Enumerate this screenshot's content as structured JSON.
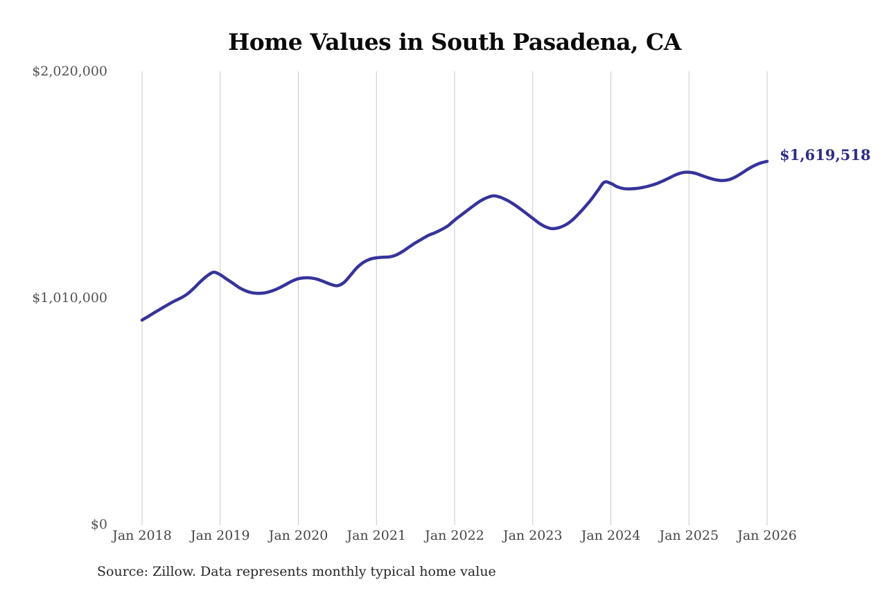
{
  "title": "Home Values in South Pasadena, CA",
  "source_note": "Source: Zillow. Data represents monthly typical home value",
  "colors": {
    "line": "#37339a",
    "end_label": "#2e2c87",
    "gridline": "#c9c9c9",
    "x_tick_label": "#454545",
    "y_tick_label": "#515151",
    "title": "#0a0a0a",
    "source": "#262626",
    "background": "#ffffff"
  },
  "chart_data": {
    "type": "line",
    "title": "Home Values in South Pasadena, CA",
    "xlabel": "",
    "ylabel": "",
    "ylim": [
      0,
      2020000
    ],
    "grid": "vertical-only",
    "legend": "none",
    "x_interval": "monthly",
    "x_start": "Jan 2018",
    "x_end": "Jan 2026",
    "months_per_tick": 12,
    "x_tick_labels": [
      "Jan 2018",
      "Jan 2019",
      "Jan 2020",
      "Jan 2021",
      "Jan 2022",
      "Jan 2023",
      "Jan 2024",
      "Jan 2025",
      "Jan 2026"
    ],
    "y_tick_labels": [
      "$0",
      "$1,010,000",
      "$2,020,000"
    ],
    "y_tick_values": [
      0,
      1010000,
      2020000
    ],
    "series": [
      {
        "name": "Monthly typical home value",
        "color": "#37339a",
        "values": [
          913000,
          930000,
          948000,
          965000,
          982000,
          998000,
          1012000,
          1030000,
          1056000,
          1085000,
          1110000,
          1126000,
          1115000,
          1095000,
          1076000,
          1056000,
          1042000,
          1034000,
          1032000,
          1035000,
          1043000,
          1055000,
          1070000,
          1086000,
          1097000,
          1101000,
          1100000,
          1094000,
          1083000,
          1072000,
          1066000,
          1080000,
          1112000,
          1146000,
          1170000,
          1184000,
          1190000,
          1193000,
          1194000,
          1202000,
          1218000,
          1238000,
          1257000,
          1274000,
          1290000,
          1302000,
          1316000,
          1333000,
          1358000,
          1380000,
          1402000,
          1424000,
          1444000,
          1458000,
          1466000,
          1460000,
          1447000,
          1430000,
          1410000,
          1388000,
          1366000,
          1344000,
          1328000,
          1320000,
          1324000,
          1336000,
          1356000,
          1384000,
          1416000,
          1450000,
          1490000,
          1527000,
          1521000,
          1506000,
          1498000,
          1497000,
          1499000,
          1504000,
          1511000,
          1520000,
          1532000,
          1546000,
          1560000,
          1569000,
          1571000,
          1566000,
          1556000,
          1546000,
          1538000,
          1534000,
          1537000,
          1548000,
          1565000,
          1584000,
          1600000,
          1612000,
          1619518
        ]
      }
    ],
    "end_annotation": {
      "text": "$1,619,518",
      "value": 1619518
    }
  }
}
